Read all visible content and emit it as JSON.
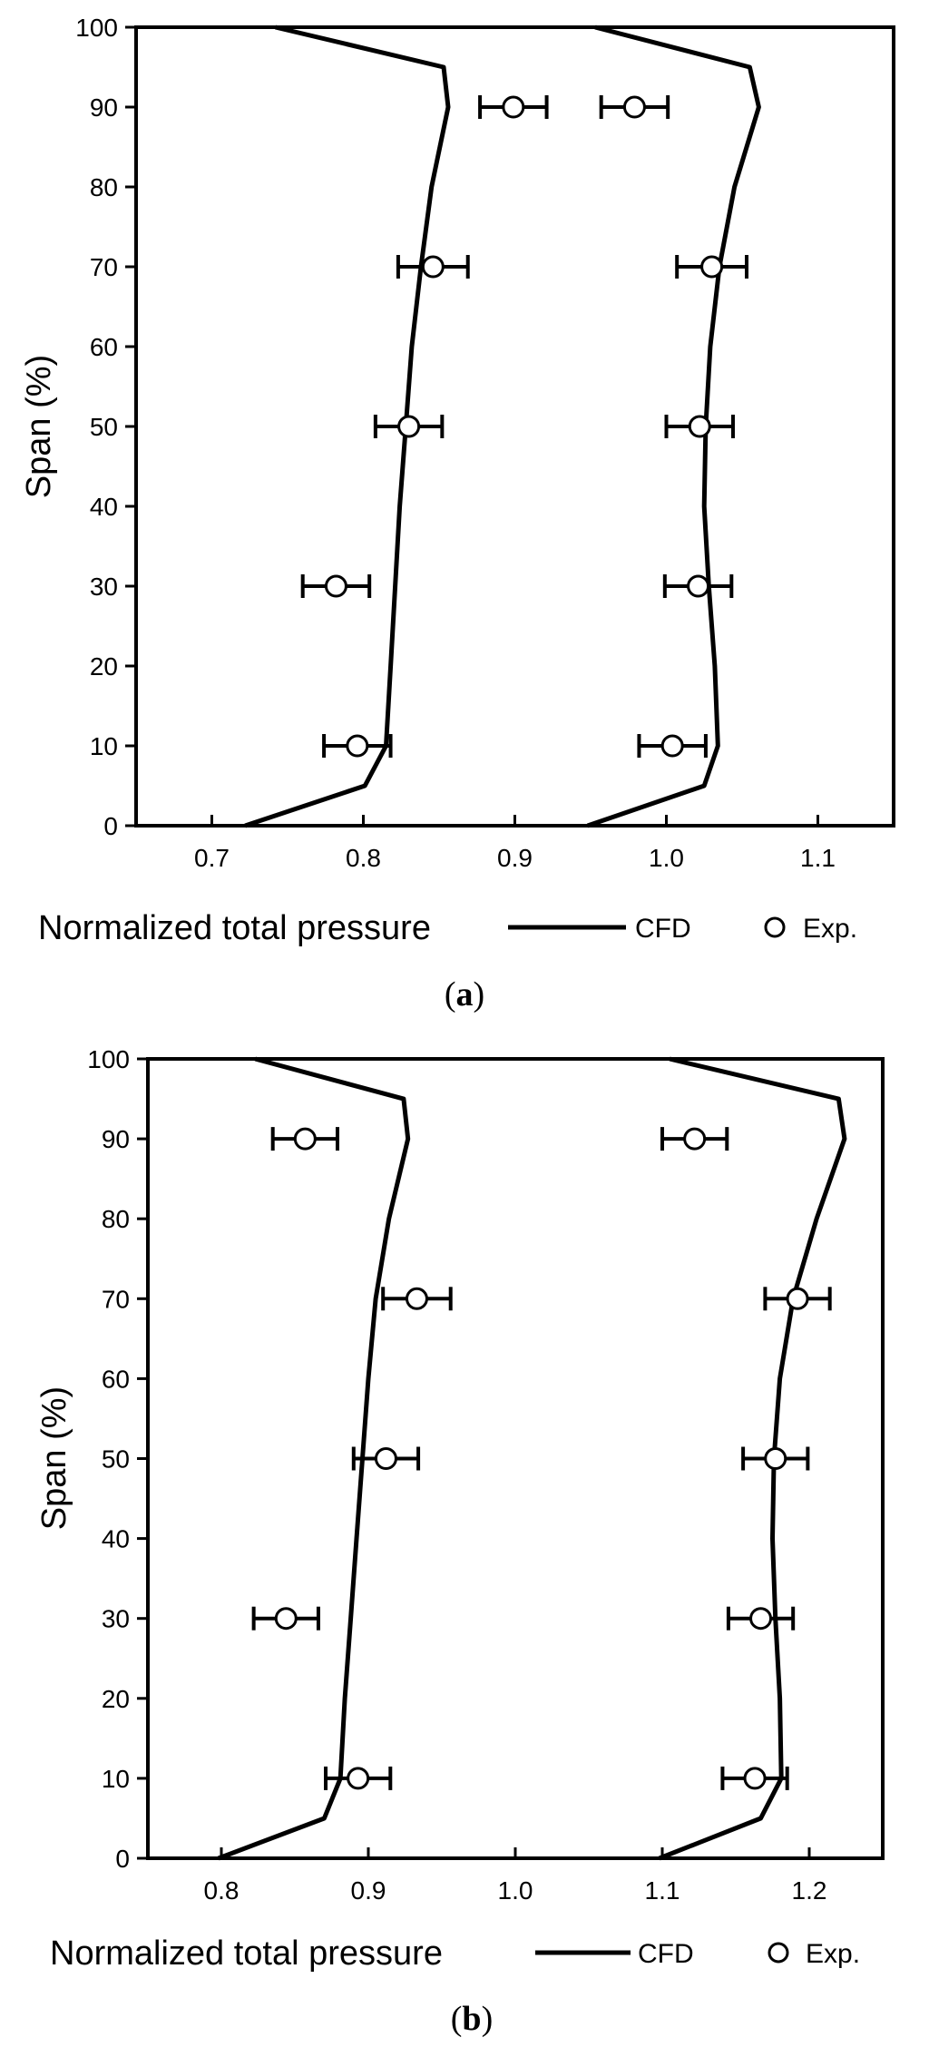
{
  "colors": {
    "line": "#000000",
    "marker_fill": "#ffffff",
    "background": "#ffffff"
  },
  "chart_data": [
    {
      "type": "line",
      "caption_letter": "a",
      "caption_open": "(",
      "caption_close": ")",
      "xlabel": "Normalized total pressure",
      "ylabel": "Span (%)",
      "xlim": [
        0.65,
        1.15
      ],
      "ylim": [
        0,
        100
      ],
      "xticks": [
        0.7,
        0.8,
        0.9,
        1.0,
        1.1
      ],
      "xtick_labels": [
        "0.7",
        "0.8",
        "0.9",
        "1.0",
        "1.1"
      ],
      "yticks": [
        0,
        10,
        20,
        30,
        40,
        50,
        60,
        70,
        80,
        90,
        100
      ],
      "ytick_labels": [
        "0",
        "10",
        "20",
        "30",
        "40",
        "50",
        "60",
        "70",
        "80",
        "90",
        "100"
      ],
      "grid": false,
      "legend": [
        {
          "label": "CFD",
          "kind": "line"
        },
        {
          "label": "Exp.",
          "kind": "marker"
        }
      ],
      "legend_placement": "bottom-right",
      "series": [
        {
          "kind": "cfd",
          "points": [
            [
              0.722,
              0
            ],
            [
              0.801,
              5
            ],
            [
              0.815,
              10
            ],
            [
              0.818,
              20
            ],
            [
              0.821,
              30
            ],
            [
              0.824,
              40
            ],
            [
              0.828,
              50
            ],
            [
              0.832,
              60
            ],
            [
              0.838,
              70
            ],
            [
              0.845,
              80
            ],
            [
              0.856,
              90
            ],
            [
              0.853,
              95
            ],
            [
              0.742,
              100
            ]
          ]
        },
        {
          "kind": "cfd",
          "points": [
            [
              0.948,
              0
            ],
            [
              1.025,
              5
            ],
            [
              1.034,
              10
            ],
            [
              1.032,
              20
            ],
            [
              1.028,
              30
            ],
            [
              1.025,
              40
            ],
            [
              1.026,
              50
            ],
            [
              1.029,
              60
            ],
            [
              1.035,
              70
            ],
            [
              1.045,
              80
            ],
            [
              1.061,
              90
            ],
            [
              1.055,
              95
            ],
            [
              0.953,
              100
            ]
          ]
        },
        {
          "kind": "exp",
          "points": [
            [
              0.796,
              10,
              0.022
            ],
            [
              0.782,
              30,
              0.022
            ],
            [
              0.83,
              50,
              0.022
            ],
            [
              0.846,
              70,
              0.023
            ],
            [
              0.899,
              90,
              0.022
            ]
          ]
        },
        {
          "kind": "exp",
          "points": [
            [
              1.004,
              10,
              0.022
            ],
            [
              1.021,
              30,
              0.022
            ],
            [
              1.022,
              50,
              0.022
            ],
            [
              1.03,
              70,
              0.023
            ],
            [
              0.979,
              90,
              0.022
            ]
          ]
        }
      ]
    },
    {
      "type": "line",
      "caption_letter": "b",
      "caption_open": "(",
      "caption_close": ")",
      "xlabel": "Normalized total pressure",
      "ylabel": "Span (%)",
      "xlim": [
        0.75,
        1.25
      ],
      "ylim": [
        0,
        100
      ],
      "xticks": [
        0.8,
        0.9,
        1.0,
        1.1,
        1.2
      ],
      "xtick_labels": [
        "0.8",
        "0.9",
        "1.0",
        "1.1",
        "1.2"
      ],
      "yticks": [
        0,
        10,
        20,
        30,
        40,
        50,
        60,
        70,
        80,
        90,
        100
      ],
      "ytick_labels": [
        "0",
        "10",
        "20",
        "30",
        "40",
        "50",
        "60",
        "70",
        "80",
        "90",
        "100"
      ],
      "grid": false,
      "legend": [
        {
          "label": "CFD",
          "kind": "line"
        },
        {
          "label": "Exp.",
          "kind": "marker"
        }
      ],
      "legend_placement": "bottom-right",
      "series": [
        {
          "kind": "cfd",
          "points": [
            [
              0.798,
              0
            ],
            [
              0.87,
              5
            ],
            [
              0.881,
              10
            ],
            [
              0.884,
              20
            ],
            [
              0.888,
              30
            ],
            [
              0.892,
              40
            ],
            [
              0.896,
              50
            ],
            [
              0.9,
              60
            ],
            [
              0.905,
              70
            ],
            [
              0.914,
              80
            ],
            [
              0.927,
              90
            ],
            [
              0.924,
              95
            ],
            [
              0.823,
              100
            ]
          ]
        },
        {
          "kind": "cfd",
          "points": [
            [
              1.098,
              0
            ],
            [
              1.167,
              5
            ],
            [
              1.181,
              10
            ],
            [
              1.18,
              20
            ],
            [
              1.177,
              30
            ],
            [
              1.175,
              40
            ],
            [
              1.176,
              50
            ],
            [
              1.18,
              60
            ],
            [
              1.189,
              70
            ],
            [
              1.205,
              80
            ],
            [
              1.224,
              90
            ],
            [
              1.22,
              95
            ],
            [
              1.105,
              100
            ]
          ]
        },
        {
          "kind": "exp",
          "points": [
            [
              0.893,
              10,
              0.022
            ],
            [
              0.844,
              30,
              0.022
            ],
            [
              0.912,
              50,
              0.022
            ],
            [
              0.933,
              70,
              0.023
            ],
            [
              0.857,
              90,
              0.022
            ]
          ]
        },
        {
          "kind": "exp",
          "points": [
            [
              1.163,
              10,
              0.022
            ],
            [
              1.167,
              30,
              0.022
            ],
            [
              1.177,
              50,
              0.022
            ],
            [
              1.192,
              70,
              0.022
            ],
            [
              1.122,
              90,
              0.022
            ]
          ]
        }
      ]
    }
  ]
}
